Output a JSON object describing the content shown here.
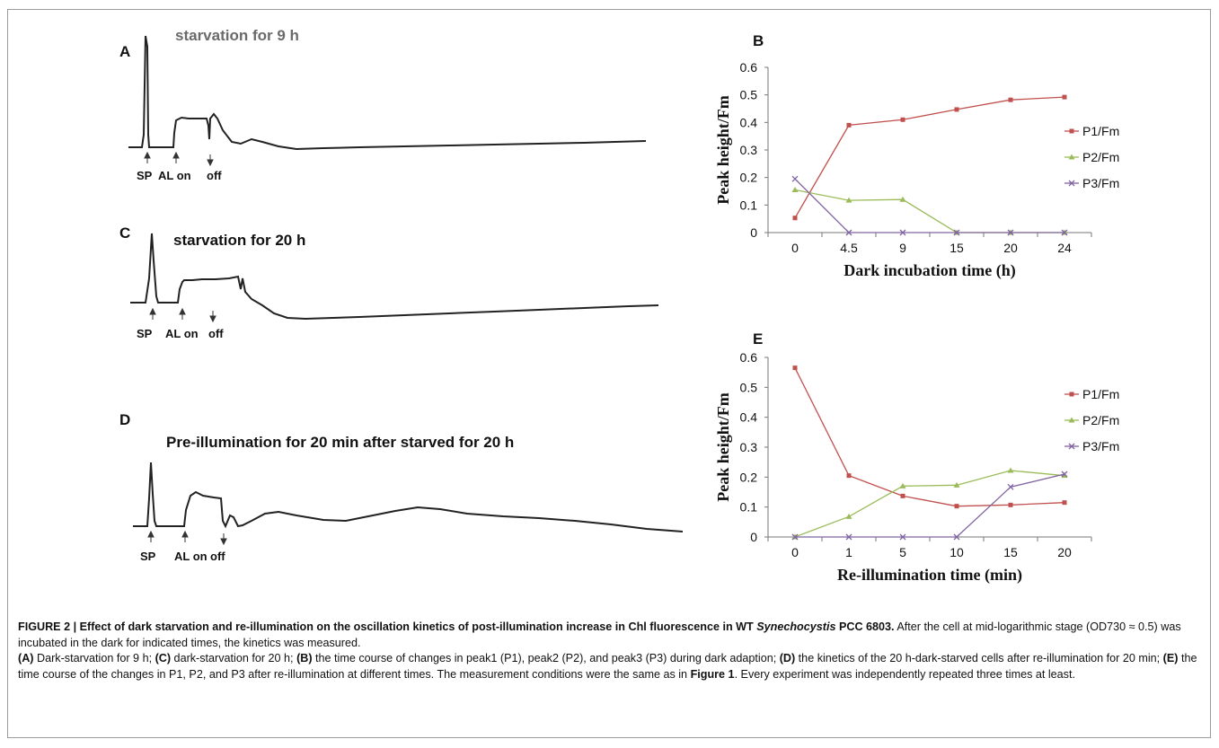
{
  "panels": {
    "a": {
      "letter": "A",
      "title": "starvation for 9 h",
      "markers": [
        "SP",
        "AL on",
        "off"
      ]
    },
    "c": {
      "letter": "C",
      "title": "starvation for 20 h",
      "markers": [
        "SP",
        "AL on",
        "off"
      ]
    },
    "d": {
      "letter": "D",
      "title": "Pre-illumination for 20 min after starved for 20 h",
      "markers": [
        "SP",
        "AL on",
        "off"
      ]
    },
    "b": {
      "letter": "B"
    },
    "e": {
      "letter": "E"
    }
  },
  "chart_data": [
    {
      "id": "B",
      "type": "line",
      "x": [
        "0",
        "4.5",
        "9",
        "15",
        "20",
        "24"
      ],
      "series": [
        {
          "name": "P1/Fm",
          "color": "#c0504d",
          "marker": "square",
          "values": [
            0.053,
            0.39,
            0.41,
            0.447,
            0.482,
            0.492
          ]
        },
        {
          "name": "P2/Fm",
          "color": "#9bbb59",
          "marker": "triangle",
          "values": [
            0.155,
            0.117,
            0.12,
            0,
            0,
            0
          ]
        },
        {
          "name": "P3/Fm",
          "color": "#8064a2",
          "marker": "x",
          "values": [
            0.195,
            0,
            0,
            0,
            0,
            0
          ]
        }
      ],
      "xlabel": "Dark incubation  time (h)",
      "ylabel": "Peak height/Fm",
      "ylim": [
        0,
        0.6
      ],
      "yticks": [
        "0",
        "0.1",
        "0.2",
        "0.3",
        "0.4",
        "0.5",
        "0.6"
      ],
      "grid": false,
      "legend": "right"
    },
    {
      "id": "E",
      "type": "line",
      "x": [
        "0",
        "1",
        "5",
        "10",
        "15",
        "20"
      ],
      "series": [
        {
          "name": "P1/Fm",
          "color": "#c0504d",
          "marker": "square",
          "values": [
            0.565,
            0.205,
            0.137,
            0.103,
            0.107,
            0.115
          ]
        },
        {
          "name": "P2/Fm",
          "color": "#9bbb59",
          "marker": "triangle",
          "values": [
            0,
            0.068,
            0.17,
            0.173,
            0.222,
            0.205
          ]
        },
        {
          "name": "P3/Fm",
          "color": "#8064a2",
          "marker": "x",
          "values": [
            0,
            0,
            0,
            0,
            0.167,
            0.21
          ]
        }
      ],
      "xlabel": "Re-illumination time (min)",
      "ylabel": "Peak height/Fm",
      "ylim": [
        0,
        0.6
      ],
      "yticks": [
        "0",
        "0.1",
        "0.2",
        "0.3",
        "0.4",
        "0.5",
        "0.6"
      ],
      "grid": false,
      "legend": "right"
    }
  ],
  "caption": {
    "head": "FIGURE 2 | Effect of dark starvation and re-illumination on the oscillation kinetics of post-illumination increase in Chl fluorescence in WT ",
    "head_species": "Synechocystis",
    "head_strain": " PCC 6803.",
    "text1": " After the cell at mid-logarithmic stage (OD730 ≈ 0.5) was incubated in the dark for indicated times, the kinetics was measured.",
    "ref_a": "(A)",
    "text_a": " Dark-starvation for 9 h; ",
    "ref_c": "(C)",
    "text_c": " dark-starvation for 20 h; ",
    "ref_b": "(B)",
    "text_b": " the time course of changes in peak1 (P1), peak2 (P2), and peak3 (P3) during dark adaption; ",
    "ref_d": "(D)",
    "text_d": " the kinetics of the 20 h-dark-starved cells after re-illumination for 20 min; ",
    "ref_e": "(E)",
    "text_e": " the time course of the changes in P1, P2, and P3 after re-illumination at different times. The measurement conditions were the same as in ",
    "fig_ref": "Figure 1",
    "text_end": ". Every experiment was independently repeated three times at least."
  }
}
